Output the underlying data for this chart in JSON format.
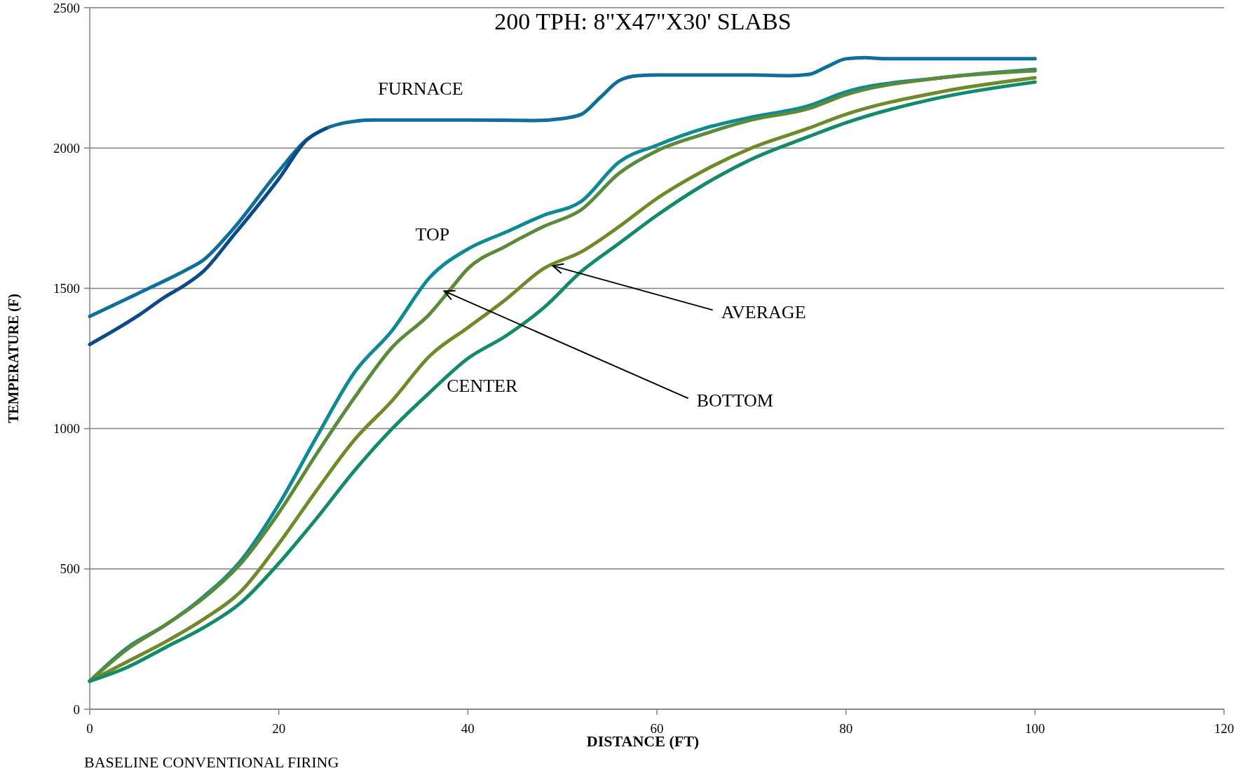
{
  "chart_data": {
    "type": "line",
    "title": "200 TPH: 8\"X47\"X30' SLABS",
    "xlabel": "DISTANCE (FT)",
    "ylabel": "TEMPERATURE (F)",
    "xlim": [
      0,
      120
    ],
    "xticks": [
      0,
      20,
      40,
      60,
      80,
      100,
      120
    ],
    "ylim": [
      0,
      2500
    ],
    "yticks": [
      0,
      500,
      1000,
      1500,
      2000,
      2500
    ],
    "grid": "y",
    "marker": "none",
    "line_style": "solid",
    "series": [
      {
        "name": "FURNACE",
        "color": "#0f6e9a",
        "x": [
          0,
          5,
          10,
          12,
          15,
          20,
          23,
          25,
          27,
          30,
          40,
          47,
          50,
          52,
          54,
          56,
          58,
          60,
          70,
          74,
          76,
          78,
          80,
          82,
          84,
          100
        ],
        "values": [
          1400,
          1480,
          1562,
          1600,
          1705,
          1918,
          2031,
          2070,
          2090,
          2100,
          2100,
          2098,
          2105,
          2120,
          2180,
          2240,
          2258,
          2260,
          2260,
          2258,
          2262,
          2290,
          2318,
          2322,
          2318,
          2318
        ]
      },
      {
        "color": "#0d4a86",
        "x": [
          0,
          5,
          8,
          10,
          12,
          15,
          20,
          23,
          25
        ],
        "values": [
          1300,
          1400,
          1470,
          1510,
          1560,
          1680,
          1890,
          2030,
          2070
        ]
      },
      {
        "name": "TOP",
        "color": "#0e8a94",
        "x": [
          0,
          4,
          8,
          12,
          16,
          20,
          24,
          28,
          32,
          36,
          40,
          44,
          48,
          52,
          56,
          60,
          65,
          70,
          76,
          80,
          90,
          100
        ],
        "values": [
          100,
          220,
          300,
          400,
          530,
          730,
          970,
          1200,
          1350,
          1540,
          1640,
          1700,
          1760,
          1810,
          1950,
          2010,
          2070,
          2110,
          2150,
          2200,
          2250,
          2280
        ]
      },
      {
        "color": "#5a8a3a",
        "x": [
          0,
          4,
          8,
          12,
          16,
          20,
          24,
          28,
          32,
          36,
          38,
          40,
          44,
          48,
          52,
          56,
          60,
          65,
          70,
          76,
          80,
          90,
          100
        ],
        "values": [
          100,
          215,
          300,
          395,
          520,
          700,
          910,
          1110,
          1290,
          1410,
          1490,
          1570,
          1650,
          1720,
          1780,
          1910,
          1990,
          2050,
          2100,
          2140,
          2190,
          2250,
          2275
        ]
      },
      {
        "color": "#6f8a2a",
        "x": [
          0,
          4,
          8,
          12,
          16,
          20,
          24,
          28,
          32,
          36,
          40,
          44,
          48,
          52,
          56,
          60,
          65,
          70,
          76,
          80,
          90,
          100
        ],
        "values": [
          100,
          170,
          240,
          320,
          420,
          590,
          780,
          960,
          1100,
          1260,
          1360,
          1460,
          1570,
          1630,
          1720,
          1820,
          1920,
          2000,
          2070,
          2120,
          2200,
          2250
        ]
      },
      {
        "name": "CENTER",
        "color": "#138a6a",
        "x": [
          0,
          4,
          8,
          12,
          16,
          20,
          24,
          28,
          32,
          36,
          40,
          44,
          48,
          52,
          56,
          60,
          65,
          70,
          76,
          80,
          90,
          100
        ],
        "values": [
          100,
          150,
          220,
          290,
          380,
          520,
          680,
          850,
          1000,
          1130,
          1250,
          1330,
          1430,
          1560,
          1660,
          1760,
          1870,
          1960,
          2040,
          2090,
          2180,
          2235
        ]
      }
    ],
    "annotations": [
      {
        "text": "BOTTOM",
        "x": 37.5,
        "y": 1490
      },
      {
        "text": "AVERAGE",
        "x": 49,
        "y": 1580
      },
      "BASELINE CONVENTIONAL FIRING"
    ]
  }
}
